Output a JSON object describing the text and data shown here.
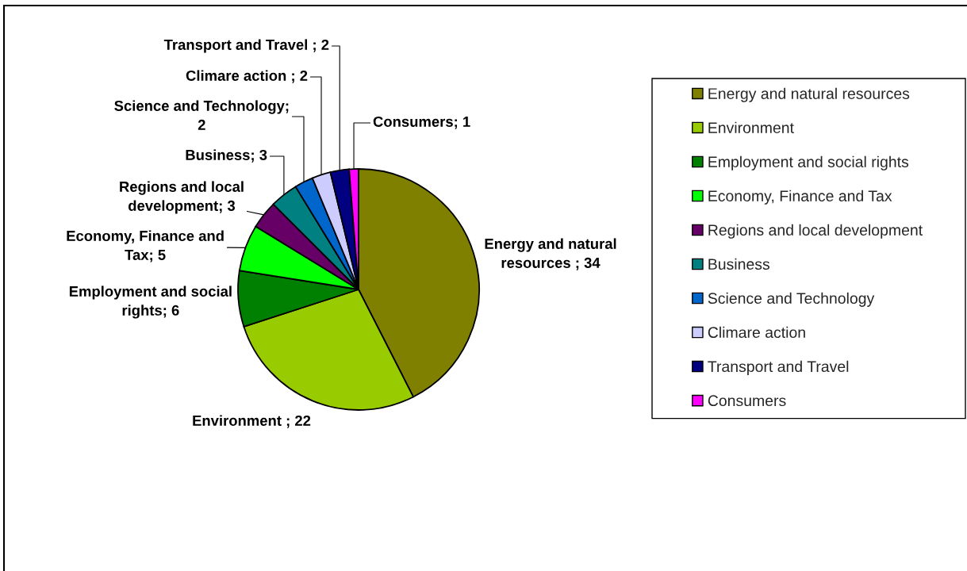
{
  "chart_data": {
    "type": "pie",
    "categories": [
      "Energy and natural resources",
      "Environment",
      "Employment and social rights",
      "Economy, Finance and Tax",
      "Regions and local development",
      "Business",
      "Science and Technology",
      "Climare action",
      "Transport and Travel",
      "Consumers"
    ],
    "values": [
      34,
      22,
      6,
      5,
      3,
      3,
      2,
      2,
      2,
      1
    ],
    "colors": [
      "#808000",
      "#99cc00",
      "#008000",
      "#00ff00",
      "#660066",
      "#008080",
      "#0066cc",
      "#ccccff",
      "#000080",
      "#ff00ff"
    ],
    "value_labels": [
      "Energy and natural\nresources ; 34",
      "Environment ; 22",
      "Employment and social\nrights; 6",
      "Economy, Finance and\nTax; 5",
      "Regions and local\ndevelopment; 3",
      "Business; 3",
      "Science and Technology;\n2",
      "Climare action ; 2",
      "Transport and Travel ; 2",
      "Consumers; 1"
    ],
    "legend": "right"
  }
}
